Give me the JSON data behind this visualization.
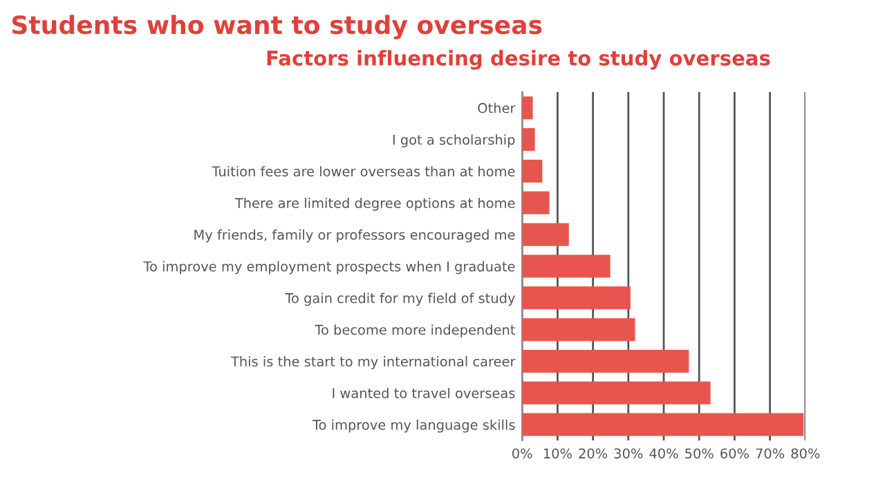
{
  "chart_data": {
    "type": "bar",
    "orientation": "horizontal",
    "title": "Students who want to study overseas",
    "subtitle": "Factors influencing desire to study overseas",
    "categories": [
      "Other",
      "I got a scholarship",
      "Tuition fees are lower overseas than at home",
      "There are limited degree options at home",
      "My friends, family or professors encouraged me",
      "To improve my employment prospects when I graduate",
      "To gain credit for my field of study",
      "To become more independent",
      "This is the start to my international career",
      "I wanted to travel overseas",
      "To improve my language skills"
    ],
    "values": [
      3.0,
      3.6,
      5.7,
      7.7,
      13.2,
      24.9,
      30.6,
      31.9,
      47.1,
      53.2,
      79.5
    ],
    "color": "#e8554e",
    "xlim": [
      0,
      80
    ],
    "xticks": [
      {
        "value": 0,
        "label": "0%"
      },
      {
        "value": 10,
        "label": "10%"
      },
      {
        "value": 20,
        "label": "20%"
      },
      {
        "value": 30,
        "label": "30%"
      },
      {
        "value": 40,
        "label": "40%"
      },
      {
        "value": 50,
        "label": "50%"
      },
      {
        "value": 60,
        "label": "60%"
      },
      {
        "value": 70,
        "label": "70%"
      },
      {
        "value": 80,
        "label": "80%"
      }
    ],
    "grid": "x",
    "legend": false
  }
}
